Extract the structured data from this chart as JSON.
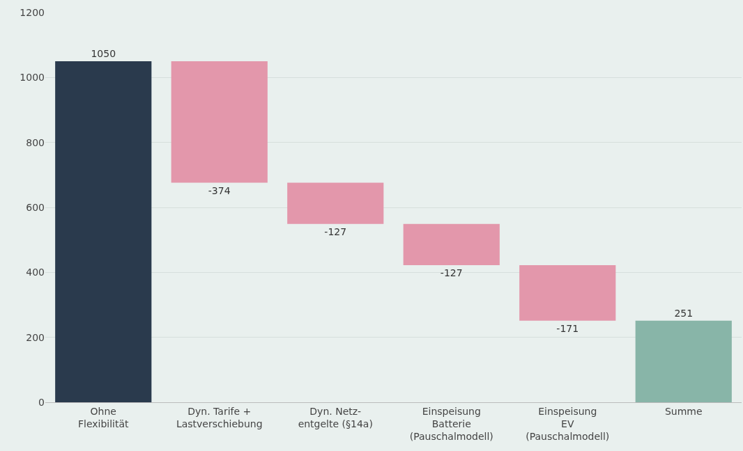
{
  "chart_data": {
    "type": "bar",
    "categories": [
      "Ohne\nFlexibilität",
      "Dyn. Tarife +\nLastverschiebung",
      "Dyn. Netz-\nentgelte (§14a)",
      "Einspeisung\nBatterie\n(Pauschalmodell)",
      "Einspeisung\nEV\n(Pauschalmodell)",
      "Summe"
    ],
    "values": [
      1050,
      -374,
      -127,
      -127,
      -171,
      251
    ],
    "base": [
      0,
      1050,
      676,
      549,
      422,
      0
    ],
    "colors": [
      "#2a3a4d",
      "#e397ab",
      "#e397ab",
      "#e397ab",
      "#e397ab",
      "#88b5a8"
    ],
    "value_labels": [
      "1050",
      "-374",
      "-127",
      "-127",
      "-171",
      "251"
    ],
    "ylim": [
      0,
      1200
    ],
    "yticks": [
      0,
      200,
      400,
      600,
      800,
      1000,
      1200
    ],
    "grid": "y"
  }
}
